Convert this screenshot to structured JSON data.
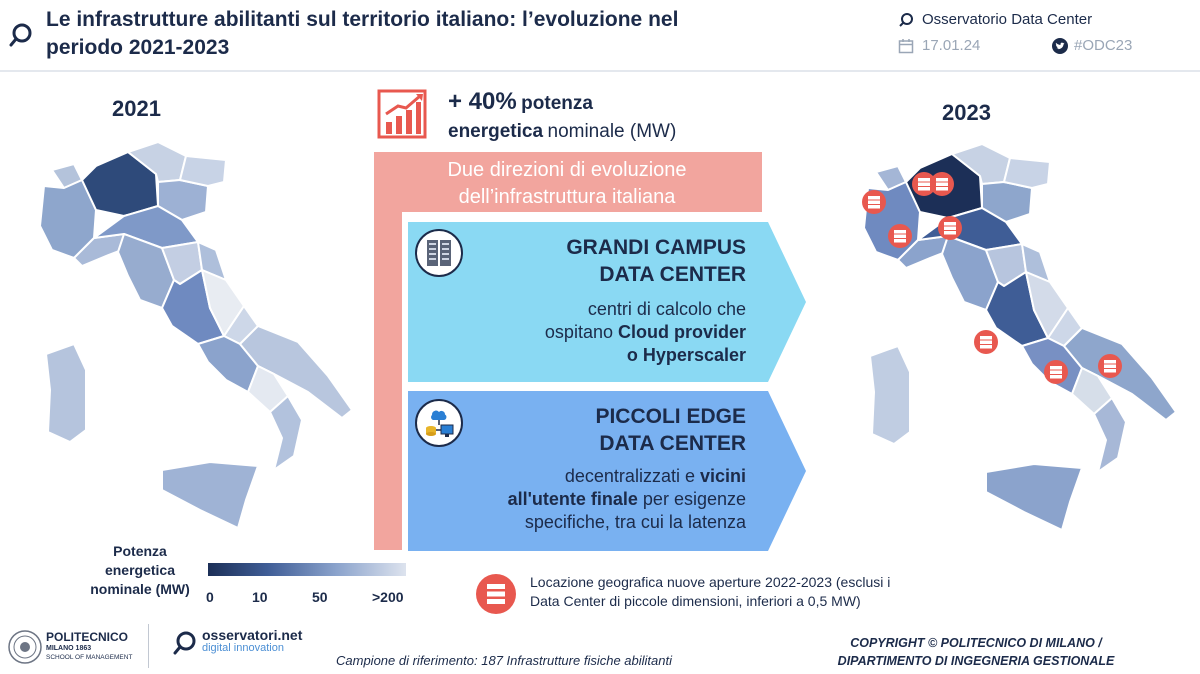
{
  "header": {
    "title_line1": "Le infrastrutture abilitanti sul territorio italiano: l’evoluzione nel",
    "title_line2": "periodo 2021-2023",
    "observatory": "Osservatorio Data Center",
    "date": "17.01.24",
    "hashtag": "#ODC23"
  },
  "years": {
    "left": "2021",
    "right": "2023"
  },
  "stat": {
    "value": "+ 40%",
    "word1": "potenza",
    "word2": "energetica",
    "word3": "nominale (MW)"
  },
  "directions": {
    "line1": "Due direzioni di evoluzione",
    "line2": "dell’infrastruttura italiana"
  },
  "cards": [
    {
      "title_line1": "GRANDI CAMPUS",
      "title_line2": "DATA CENTER",
      "body_line1": "centri di calcolo che",
      "body_line2_pre": "ospitano ",
      "body_line2_bold": "Cloud provider",
      "body_line3": "o Hyperscaler",
      "icon": "server-rack-icon",
      "color": "#8ad9f3"
    },
    {
      "title_line1": "PICCOLI EDGE",
      "title_line2": "DATA CENTER",
      "body_line1_pre": "decentralizzati e ",
      "body_line1_bold": "vicini",
      "body_line2_bold": "all'utente finale",
      "body_line2_post": " per esigenze",
      "body_line3": "specifiche, tra cui la latenza",
      "icon": "edge-cloud-icon",
      "color": "#79b1f1"
    }
  ],
  "legend": {
    "title_line1": "Potenza",
    "title_line2": "energetica",
    "title_line3": "nominale (MW)",
    "ticks": [
      "0",
      "10",
      "50",
      ">200"
    ],
    "gradient_start": "#1c2f57",
    "gradient_end": "#dde3ee"
  },
  "location_note": {
    "line1": "Locazione geografica nuove aperture 2022-2023 (esclusi i",
    "line2": "Data Center di piccole dimensioni, inferiori a 0,5 MW)",
    "icon": "server-marker-icon",
    "color": "#e8584f"
  },
  "footer": {
    "polimi_name": "POLITECNICO",
    "polimi_sub": "MILANO 1863",
    "polimi_school": "SCHOOL OF MANAGEMENT",
    "osservatori_name": "osservatori.net",
    "osservatori_sub": "digital innovation",
    "sample": "Campione di riferimento: 187 Infrastrutture fisiche abilitanti",
    "copyright_line1": "COPYRIGHT © POLITECNICO DI MILANO /",
    "copyright_line2": "DIPARTIMENTO DI INGEGNERIA GESTIONALE"
  },
  "colors": {
    "navy": "#1c2b4a",
    "accent_red": "#e8584f",
    "pink": "#f2a59e"
  }
}
